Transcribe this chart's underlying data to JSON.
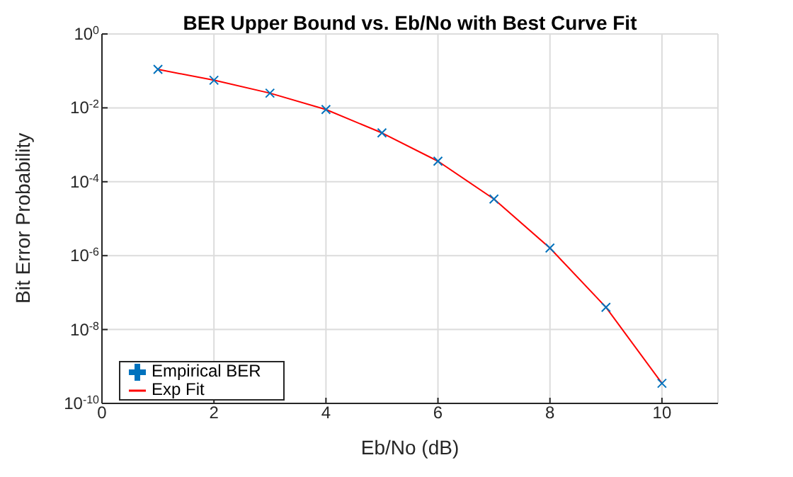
{
  "chart_data": {
    "type": "scatter",
    "title": "BER Upper Bound vs. Eb/No with Best Curve Fit",
    "xlabel": "Eb/No (dB)",
    "ylabel": "Bit Error Probability",
    "x": [
      1,
      2,
      3,
      4,
      5,
      6,
      7,
      8,
      9,
      10
    ],
    "series": [
      {
        "name": "Empirical BER",
        "color": "#0072bd",
        "marker": "cross",
        "values": [
          0.11,
          0.056,
          0.025,
          0.009,
          0.0021,
          0.00036,
          3.4e-05,
          1.6e-06,
          4e-08,
          3.5e-10
        ]
      },
      {
        "name": "Exp Fit",
        "type": "line",
        "color": "#ff0000",
        "marker": "none",
        "line_style": "solid",
        "values": [
          0.11,
          0.056,
          0.025,
          0.009,
          0.0021,
          0.00036,
          3.4e-05,
          1.6e-06,
          4e-08,
          3.5e-10
        ]
      }
    ],
    "log": "y",
    "xlim": [
      0,
      11
    ],
    "xticks": [
      0,
      2,
      4,
      6,
      8,
      10
    ],
    "ylim": [
      1e-10,
      1
    ],
    "yticks": [
      {
        "value": 1e-10,
        "label": "10$^{-10}$"
      },
      {
        "value": 1e-08,
        "label": "10$^{-8}$"
      },
      {
        "value": 1e-06,
        "label": "10$^{-6}$"
      },
      {
        "value": 0.0001,
        "label": "10$^{-4}$"
      },
      {
        "value": 0.01,
        "label": "10$^{-2}$"
      },
      {
        "value": 1,
        "label": "10$^{0}$"
      }
    ],
    "grid": true,
    "legend": "bottom left"
  }
}
